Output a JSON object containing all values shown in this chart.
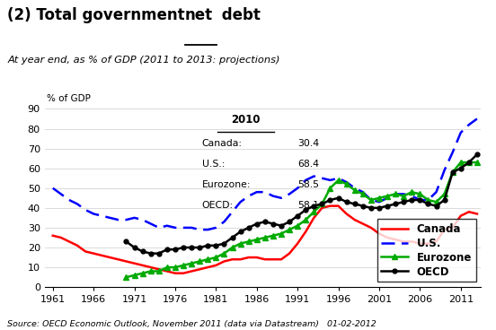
{
  "subtitle": "At year end, as % of GDP (2011 to 2013: projections)",
  "ylabel": "% of GDP",
  "source": "Source: OECD Economic Outlook, November 2011 (data via Datastream)   01-02-2012",
  "years_canada": [
    1961,
    1962,
    1963,
    1964,
    1965,
    1966,
    1967,
    1968,
    1969,
    1970,
    1971,
    1972,
    1973,
    1974,
    1975,
    1976,
    1977,
    1978,
    1979,
    1980,
    1981,
    1982,
    1983,
    1984,
    1985,
    1986,
    1987,
    1988,
    1989,
    1990,
    1991,
    1992,
    1993,
    1994,
    1995,
    1996,
    1997,
    1998,
    1999,
    2000,
    2001,
    2002,
    2003,
    2004,
    2005,
    2006,
    2007,
    2008,
    2009,
    2010,
    2011,
    2012,
    2013
  ],
  "canada": [
    26,
    25,
    23,
    21,
    18,
    17,
    16,
    15,
    14,
    13,
    12,
    11,
    10,
    9,
    8,
    7,
    7,
    8,
    9,
    10,
    11,
    13,
    14,
    14,
    15,
    15,
    14,
    14,
    14,
    17,
    22,
    28,
    35,
    40,
    41,
    41,
    37,
    34,
    32,
    30,
    27,
    25,
    24,
    23,
    23,
    22,
    22,
    23,
    29,
    30,
    36,
    38,
    37
  ],
  "years_us": [
    1961,
    1962,
    1963,
    1964,
    1965,
    1966,
    1967,
    1968,
    1969,
    1970,
    1971,
    1972,
    1973,
    1974,
    1975,
    1976,
    1977,
    1978,
    1979,
    1980,
    1981,
    1982,
    1983,
    1984,
    1985,
    1986,
    1987,
    1988,
    1989,
    1990,
    1991,
    1992,
    1993,
    1994,
    1995,
    1996,
    1997,
    1998,
    1999,
    2000,
    2001,
    2002,
    2003,
    2004,
    2005,
    2006,
    2007,
    2008,
    2009,
    2010,
    2011,
    2012,
    2013
  ],
  "us": [
    50,
    47,
    44,
    42,
    39,
    37,
    36,
    35,
    34,
    34,
    35,
    34,
    32,
    30,
    31,
    30,
    30,
    30,
    29,
    29,
    30,
    33,
    38,
    43,
    46,
    48,
    48,
    46,
    45,
    47,
    50,
    54,
    56,
    55,
    54,
    55,
    53,
    50,
    48,
    44,
    43,
    45,
    47,
    47,
    46,
    44,
    44,
    48,
    59,
    68,
    78,
    82,
    85
  ],
  "years_eurozone": [
    1970,
    1971,
    1972,
    1973,
    1974,
    1975,
    1976,
    1977,
    1978,
    1979,
    1980,
    1981,
    1982,
    1983,
    1984,
    1985,
    1986,
    1987,
    1988,
    1989,
    1990,
    1991,
    1992,
    1993,
    1994,
    1995,
    1996,
    1997,
    1998,
    1999,
    2000,
    2001,
    2002,
    2003,
    2004,
    2005,
    2006,
    2007,
    2008,
    2009,
    2010,
    2011,
    2012,
    2013
  ],
  "eurozone": [
    5,
    6,
    7,
    8,
    8,
    10,
    10,
    11,
    12,
    13,
    14,
    15,
    17,
    20,
    22,
    23,
    24,
    25,
    26,
    27,
    29,
    31,
    34,
    38,
    42,
    50,
    54,
    52,
    49,
    47,
    44,
    45,
    46,
    47,
    46,
    48,
    47,
    44,
    43,
    47,
    58,
    63,
    63,
    63
  ],
  "years_oecd": [
    1970,
    1971,
    1972,
    1973,
    1974,
    1975,
    1976,
    1977,
    1978,
    1979,
    1980,
    1981,
    1982,
    1983,
    1984,
    1985,
    1986,
    1987,
    1988,
    1989,
    1990,
    1991,
    1992,
    1993,
    1994,
    1995,
    1996,
    1997,
    1998,
    1999,
    2000,
    2001,
    2002,
    2003,
    2004,
    2005,
    2006,
    2007,
    2008,
    2009,
    2010,
    2011,
    2012,
    2013
  ],
  "oecd": [
    23,
    20,
    18,
    17,
    17,
    19,
    19,
    20,
    20,
    20,
    21,
    21,
    22,
    25,
    28,
    30,
    32,
    33,
    32,
    31,
    33,
    36,
    39,
    41,
    42,
    44,
    45,
    43,
    42,
    41,
    40,
    40,
    41,
    42,
    43,
    44,
    44,
    42,
    41,
    44,
    58,
    60,
    63,
    67
  ],
  "color_canada": "#ff0000",
  "color_us": "#0000ff",
  "color_eurozone": "#00aa00",
  "color_oecd": "#000000",
  "ylim": [
    0,
    90
  ],
  "yticks": [
    0,
    10,
    20,
    30,
    40,
    50,
    60,
    70,
    80,
    90
  ],
  "xticks": [
    1961,
    1966,
    1971,
    1976,
    1981,
    1986,
    1991,
    1996,
    2001,
    2006,
    2011
  ],
  "xlim": [
    1960,
    2013.5
  ],
  "ann_canada_val": "30.4",
  "ann_us_val": "68.4",
  "ann_euro_val": "58.5",
  "ann_oecd_val": "58.1",
  "title_part1": "(2) Total government ",
  "title_underline": "net",
  "title_part3": " debt"
}
